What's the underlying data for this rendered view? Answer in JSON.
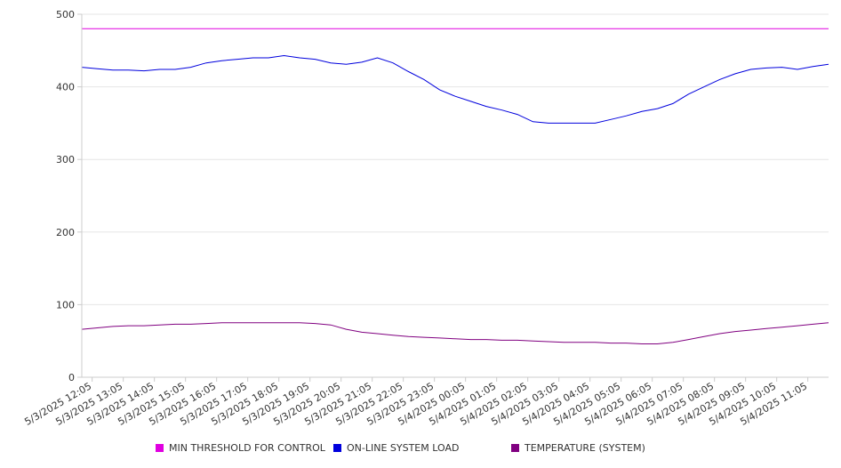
{
  "chart_data": {
    "type": "line",
    "title": "",
    "xlabel": "",
    "ylabel": "",
    "ylim": [
      0,
      500
    ],
    "yticks": [
      0,
      100,
      200,
      300,
      400,
      500
    ],
    "grid": true,
    "legend_position": "bottom",
    "x_tick_labels": [
      "5/3/2025 12:05",
      "5/3/2025 13:05",
      "5/3/2025 14:05",
      "5/3/2025 15:05",
      "5/3/2025 16:05",
      "5/3/2025 17:05",
      "5/3/2025 18:05",
      "5/3/2025 19:05",
      "5/3/2025 20:05",
      "5/3/2025 21:05",
      "5/3/2025 22:05",
      "5/3/2025 23:05",
      "5/4/2025 00:05",
      "5/4/2025 01:05",
      "5/4/2025 02:05",
      "5/4/2025 03:05",
      "5/4/2025 04:05",
      "5/4/2025 05:05",
      "5/4/2025 06:05",
      "5/4/2025 07:05",
      "5/4/2025 08:05",
      "5/4/2025 09:05",
      "5/4/2025 10:05",
      "5/4/2025 11:05"
    ],
    "x_range": [
      "5/3/2025 11:45",
      "5/4/2025 11:45"
    ],
    "x": [
      "11:45",
      "12:15",
      "12:45",
      "13:15",
      "13:45",
      "14:15",
      "14:45",
      "15:15",
      "15:45",
      "16:15",
      "16:45",
      "17:15",
      "17:45",
      "18:15",
      "18:45",
      "19:15",
      "19:45",
      "20:15",
      "20:45",
      "21:15",
      "21:45",
      "22:15",
      "22:45",
      "23:15",
      "23:45",
      "00:15",
      "00:45",
      "01:15",
      "01:45",
      "02:15",
      "02:45",
      "03:15",
      "03:45",
      "04:15",
      "04:45",
      "05:15",
      "05:45",
      "06:15",
      "06:45",
      "07:15",
      "07:45",
      "08:15",
      "08:45",
      "09:15",
      "09:45",
      "10:15",
      "10:45",
      "11:15",
      "11:45"
    ],
    "series": [
      {
        "name": "MIN THRESHOLD FOR CONTROL",
        "color": "#e000e0",
        "values": [
          480,
          480,
          480,
          480,
          480,
          480,
          480,
          480,
          480,
          480,
          480,
          480,
          480,
          480,
          480,
          480,
          480,
          480,
          480,
          480,
          480,
          480,
          480,
          480,
          480,
          480,
          480,
          480,
          480,
          480,
          480,
          480,
          480,
          480,
          480,
          480,
          480,
          480,
          480,
          480,
          480,
          480,
          480,
          480,
          480,
          480,
          480,
          480,
          480
        ]
      },
      {
        "name": "ON-LINE SYSTEM LOAD",
        "color": "#0000dd",
        "values": [
          427,
          425,
          423,
          423,
          422,
          424,
          424,
          427,
          433,
          436,
          438,
          440,
          440,
          443,
          440,
          438,
          433,
          431,
          434,
          440,
          433,
          421,
          410,
          396,
          387,
          380,
          373,
          368,
          362,
          352,
          350,
          350,
          350,
          350,
          355,
          360,
          366,
          370,
          377,
          390,
          400,
          410,
          418,
          424,
          426,
          427,
          424,
          428,
          431
        ]
      },
      {
        "name": "TEMPERATURE (SYSTEM)",
        "color": "#800080",
        "values": [
          66,
          68,
          70,
          71,
          71,
          72,
          73,
          73,
          74,
          75,
          75,
          75,
          75,
          75,
          75,
          74,
          72,
          66,
          62,
          60,
          58,
          56,
          55,
          54,
          53,
          52,
          52,
          51,
          51,
          50,
          49,
          48,
          48,
          48,
          47,
          47,
          46,
          46,
          48,
          52,
          56,
          60,
          63,
          65,
          67,
          69,
          71,
          73,
          75
        ]
      }
    ]
  }
}
